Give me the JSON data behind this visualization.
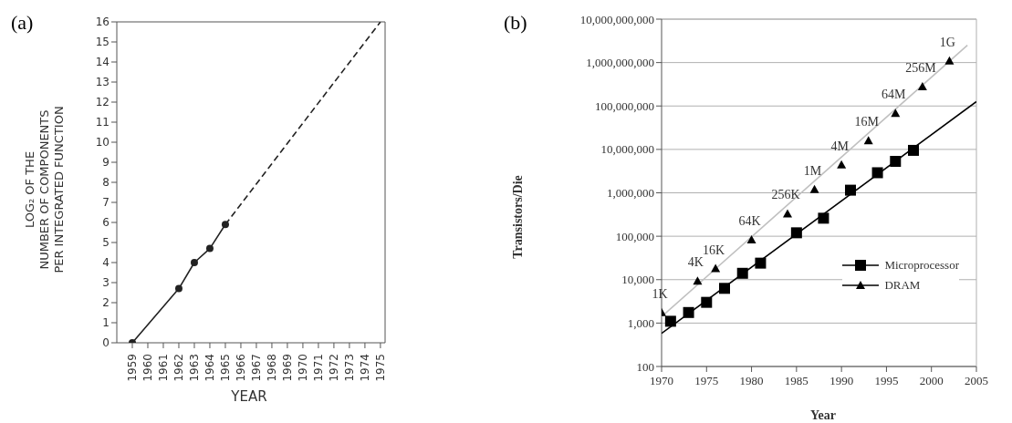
{
  "chart_data": [
    {
      "type": "line",
      "title": "(a)",
      "xlabel": "YEAR",
      "ylabel": "LOG₂ OF THE\nNUMBER OF COMPONENTS\nPER INTEGRATED FUNCTION",
      "xlim": [
        1958,
        1975.3
      ],
      "xticks": [
        1959,
        1960,
        1961,
        1962,
        1963,
        1964,
        1965,
        1966,
        1967,
        1968,
        1969,
        1970,
        1971,
        1972,
        1973,
        1974,
        1975
      ],
      "ylim": [
        0,
        16
      ],
      "yticks": [
        0,
        1,
        2,
        3,
        4,
        5,
        6,
        7,
        8,
        9,
        10,
        11,
        12,
        13,
        14,
        15,
        16
      ],
      "series": [
        {
          "color": "#222222",
          "x": [
            1959,
            1962,
            1963,
            1964,
            1965
          ],
          "values": [
            0,
            2.7,
            4,
            4.7,
            5.9
          ],
          "marker": "circle",
          "line_style": "solid"
        },
        {
          "color": "#222222",
          "x": [
            1965,
            1975
          ],
          "values": [
            5.9,
            16
          ],
          "marker": "none",
          "line_style": "dashed"
        }
      ]
    },
    {
      "type": "scatter",
      "title": "(b)",
      "xlabel": "Year",
      "ylabel": "Transistors/Die",
      "log": "y",
      "grid": "y",
      "legend": "right",
      "xlim": [
        1970,
        2005
      ],
      "xticks": [
        1970,
        1975,
        1980,
        1985,
        1990,
        1995,
        2000,
        2005
      ],
      "ylim": [
        100,
        10000000000
      ],
      "yticks": [
        100,
        {
          "value": 1000,
          "label": "1,000"
        },
        {
          "value": 10000,
          "label": "10,000"
        },
        {
          "value": 100000,
          "label": "100,000"
        },
        {
          "value": 1000000,
          "label": "1,000,000"
        },
        {
          "value": 10000000,
          "label": "10,000,000"
        },
        {
          "value": 100000000,
          "label": "100,000,000"
        },
        {
          "value": 1000000000,
          "label": "1,000,000,000"
        },
        {
          "value": 10000000000,
          "label": "10,000,000,000"
        }
      ],
      "series": [
        {
          "type": "line",
          "color": "#c0c0c0",
          "x": [
            1970,
            2004
          ],
          "values": [
            1400,
            2500000000
          ],
          "marker": "none",
          "line_style": "solid"
        },
        {
          "type": "line",
          "color": "#000000",
          "x": [
            1970,
            2005
          ],
          "values": [
            580,
            126000000
          ],
          "marker": "none",
          "line_style": "solid"
        },
        {
          "name": "Microprocessor",
          "color": "#000000",
          "marker": "square",
          "x": [
            1971,
            1973,
            1975,
            1977,
            1979,
            1981,
            1985,
            1988,
            1991,
            1994,
            1996,
            1998
          ],
          "values": [
            1100,
            1750,
            3000,
            6300,
            14000,
            24000,
            120000,
            260000,
            1150000,
            2900000,
            5300000,
            9500000
          ]
        },
        {
          "name": "DRAM",
          "color": "#000000",
          "marker": "triangle",
          "x": [
            1970,
            1974,
            1976,
            1980,
            1984,
            1987,
            1990,
            1993,
            1996,
            1999,
            2002
          ],
          "values": [
            1750,
            9300,
            18000,
            83000,
            330000,
            1200000,
            4400000,
            16000000,
            68000000,
            280000000,
            1100000000
          ]
        }
      ],
      "annotations": [
        {
          "text": "1K",
          "x": 1970,
          "y": 1750
        },
        {
          "text": "4K",
          "x": 1974,
          "y": 9300
        },
        {
          "text": "16K",
          "x": 1976,
          "y": 18000
        },
        {
          "text": "64K",
          "x": 1980,
          "y": 83000
        },
        {
          "text": "256K",
          "x": 1984,
          "y": 330000
        },
        {
          "text": "1M",
          "x": 1987,
          "y": 1200000
        },
        {
          "text": "4M",
          "x": 1990,
          "y": 4400000
        },
        {
          "text": "16M",
          "x": 1993,
          "y": 16000000
        },
        {
          "text": "64M",
          "x": 1996,
          "y": 68000000
        },
        {
          "text": "256M",
          "x": 1999,
          "y": 280000000
        },
        {
          "text": "1G",
          "x": 2002,
          "y": 1100000000
        }
      ]
    }
  ]
}
